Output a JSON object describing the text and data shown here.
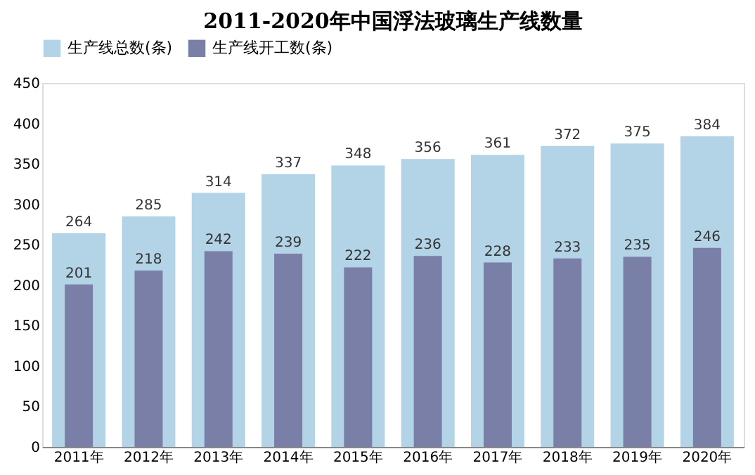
{
  "chart_data": {
    "type": "bar",
    "title": "2011-2020年中国浮法玻璃生产线数量",
    "categories": [
      "2011年",
      "2012年",
      "2013年",
      "2014年",
      "2015年",
      "2016年",
      "2017年",
      "2018年",
      "2019年",
      "2020年"
    ],
    "series": [
      {
        "name": "生产线总数(条)",
        "color": "#b3d3e6",
        "values": [
          264,
          285,
          314,
          337,
          348,
          356,
          361,
          372,
          375,
          384
        ]
      },
      {
        "name": "生产线开工数(条)",
        "color": "#7a7fa8",
        "values": [
          201,
          218,
          242,
          239,
          222,
          236,
          228,
          233,
          235,
          246
        ]
      }
    ],
    "ylim": [
      0,
      450
    ],
    "yticks": [
      0,
      50,
      100,
      150,
      200,
      250,
      300,
      350,
      400,
      450
    ],
    "data_labels": true,
    "grid": false,
    "legend": "top"
  }
}
